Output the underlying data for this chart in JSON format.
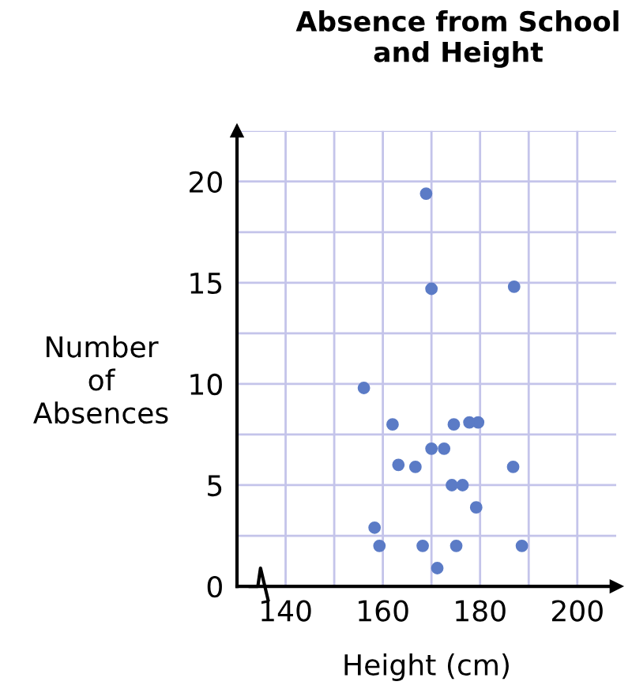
{
  "chart_data": {
    "type": "scatter",
    "title": "Absence from School\nand Height",
    "xlabel": "Height (cm)",
    "ylabel": "Number\nof\nAbsences",
    "x": [
      156.1,
      162,
      174.6,
      177.8,
      179.6,
      170,
      172.6,
      163.2,
      166.7,
      186.8,
      174.2,
      176.4,
      179.2,
      158.3,
      159.3,
      168.2,
      175.1,
      188.6,
      171.2,
      168.9,
      170,
      187
    ],
    "series": [
      {
        "color": "#5b7bc6",
        "values": [
          9.8,
          8,
          8,
          8.1,
          8.1,
          6.8,
          6.8,
          6,
          5.9,
          5.9,
          5,
          5,
          3.9,
          2.9,
          2,
          2,
          2,
          2,
          0.9,
          19.4,
          14.7,
          14.8
        ]
      }
    ],
    "xlim": [
      130,
      208
    ],
    "ylim": [
      0,
      22.5
    ],
    "xticks": [
      140,
      {
        "value": 150,
        "label": null
      },
      160,
      {
        "value": 170,
        "label": null
      },
      180,
      {
        "value": 190,
        "label": null
      },
      200
    ],
    "yticks": [
      0,
      {
        "value": 2.5,
        "label": null
      },
      5,
      {
        "value": 7.5,
        "label": null
      },
      10,
      {
        "value": 12.5,
        "label": null
      },
      15,
      {
        "value": 17.5,
        "label": null
      },
      20,
      {
        "value": 22.5,
        "label": null
      }
    ],
    "grid": true,
    "marker": "circle",
    "legend": false
  }
}
